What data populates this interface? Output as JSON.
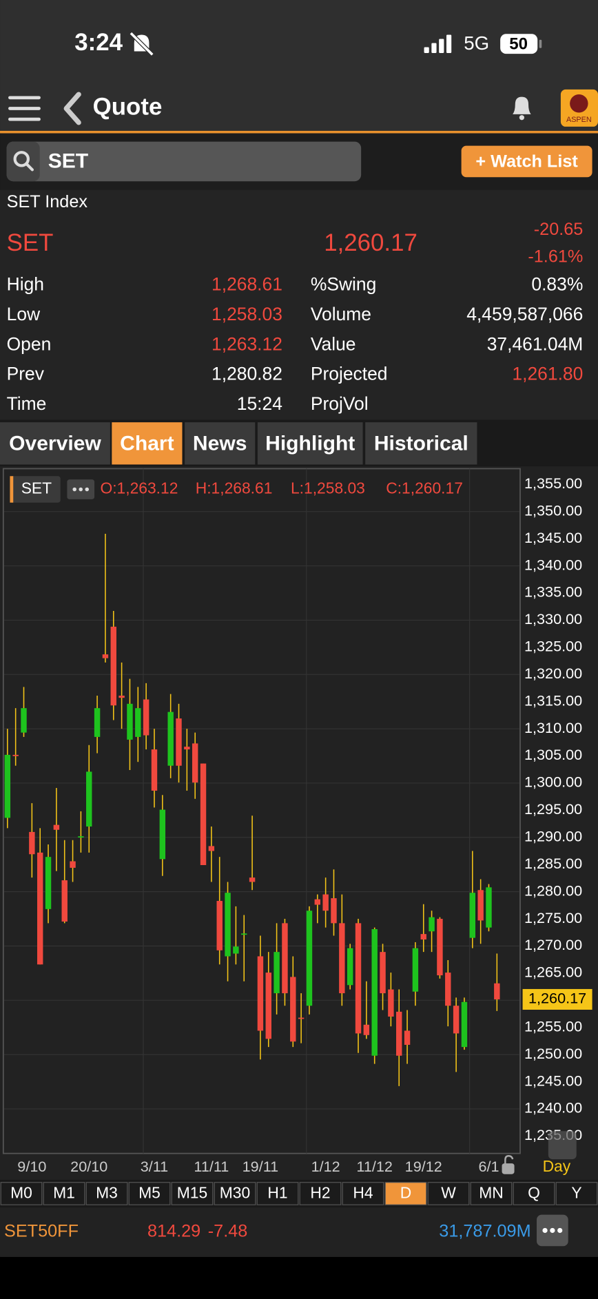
{
  "status_bar": {
    "time": "3:24",
    "network": "5G",
    "battery": "50"
  },
  "header": {
    "title": "Quote",
    "logo": "ASPEN"
  },
  "search": {
    "query": "SET",
    "button": "+ Watch List"
  },
  "quote": {
    "name": "SET Index",
    "symbol": "SET",
    "last": "1,260.17",
    "change": "-20.65",
    "change_pct": "-1.61%",
    "stats_left": [
      {
        "label": "High",
        "value": "1,268.61",
        "color": "#f0493e"
      },
      {
        "label": "Low",
        "value": "1,258.03",
        "color": "#f0493e"
      },
      {
        "label": "Open",
        "value": "1,263.12",
        "color": "#f0493e"
      },
      {
        "label": "Prev",
        "value": "1,280.82",
        "color": "#ffffff"
      },
      {
        "label": "Time",
        "value": "15:24",
        "color": "#ffffff"
      }
    ],
    "stats_right": [
      {
        "label": "%Swing",
        "value": "0.83%",
        "color": "#ffffff"
      },
      {
        "label": "Volume",
        "value": "4,459,587,066",
        "color": "#ffffff"
      },
      {
        "label": "Value",
        "value": "37,461.04M",
        "color": "#ffffff"
      },
      {
        "label": "Projected",
        "value": "1,261.80",
        "color": "#f0493e"
      },
      {
        "label": "ProjVol"
      }
    ]
  },
  "tabs": [
    {
      "label": "Overview",
      "active": false
    },
    {
      "label": "Chart",
      "active": true
    },
    {
      "label": "News",
      "active": false
    },
    {
      "label": "Highlight",
      "active": false
    },
    {
      "label": "Historical",
      "active": false
    }
  ],
  "chart_data": {
    "type": "candlestick",
    "symbol": "SET",
    "legend": [
      "O:1,263.12",
      "H:1,268.61",
      "L:1,258.03",
      "C:1,260.17"
    ],
    "up_color": "#1ec31e",
    "down_color": "#f0493e",
    "grid": true,
    "ylim": [
      1231.8,
      1357.9
    ],
    "yticks": [
      {
        "value": 1355,
        "label": "1,355.00"
      },
      {
        "value": 1350,
        "label": "1,350.00"
      },
      {
        "value": 1345,
        "label": "1,345.00"
      },
      {
        "value": 1340,
        "label": "1,340.00"
      },
      {
        "value": 1335,
        "label": "1,335.00"
      },
      {
        "value": 1330,
        "label": "1,330.00"
      },
      {
        "value": 1325,
        "label": "1,325.00"
      },
      {
        "value": 1320,
        "label": "1,320.00"
      },
      {
        "value": 1315,
        "label": "1,315.00"
      },
      {
        "value": 1310,
        "label": "1,310.00"
      },
      {
        "value": 1305,
        "label": "1,305.00"
      },
      {
        "value": 1300,
        "label": "1,300.00"
      },
      {
        "value": 1295,
        "label": "1,295.00"
      },
      {
        "value": 1290,
        "label": "1,290.00"
      },
      {
        "value": 1285,
        "label": "1,285.00"
      },
      {
        "value": 1280,
        "label": "1,280.00"
      },
      {
        "value": 1275,
        "label": "1,275.00"
      },
      {
        "value": 1270,
        "label": "1,270.00"
      },
      {
        "value": 1265,
        "label": "1,265.00"
      },
      {
        "value": 1260,
        "label": "1,260.00"
      },
      {
        "value": 1255,
        "label": "1,255.00"
      },
      {
        "value": 1250,
        "label": "1,250.00"
      },
      {
        "value": 1245,
        "label": "1,245.00"
      },
      {
        "value": 1240,
        "label": "1,240.00"
      },
      {
        "value": 1235,
        "label": "1,235.00"
      }
    ],
    "last_price": {
      "value": 1260.17,
      "label": "1,260.17"
    },
    "period": "Day",
    "categories": [
      null,
      null,
      null,
      "9/10",
      null,
      null,
      null,
      null,
      null,
      null,
      "20/10",
      null,
      null,
      null,
      null,
      null,
      null,
      null,
      "3/11",
      null,
      null,
      null,
      null,
      null,
      null,
      "11/11",
      null,
      null,
      null,
      null,
      null,
      "19/11",
      null,
      null,
      null,
      null,
      null,
      null,
      null,
      "1/12",
      null,
      null,
      null,
      null,
      null,
      "11/12",
      null,
      null,
      null,
      null,
      null,
      "19/12",
      null,
      null,
      null,
      null,
      null,
      null,
      null,
      "6/1",
      null
    ],
    "open": [
      1293.6,
      1305.2,
      1309.3,
      1291.0,
      1287.2,
      1276.8,
      1292.3,
      1282.1,
      1285.6,
      1290.0,
      1292.0,
      1308.5,
      1323.7,
      1328.8,
      1316.1,
      1308.0,
      1308.5,
      1315.4,
      1306.2,
      1286.0,
      1303.2,
      1311.9,
      1306.7,
      1307.3,
      1303.6,
      1288.4,
      1278.3,
      1268.1,
      1268.6,
      1272.2,
      1282.6,
      1268.1,
      1265.1,
      1261.3,
      1274.2,
      1264.3,
      1256.8,
      1259.0,
      1278.6,
      1279.5,
      1278.8,
      1274.2,
      1262.8,
      1274.2,
      1255.5,
      1249.8,
      1268.9,
      1262.0,
      1257.9,
      1254.4,
      1261.6,
      1272.2,
      1272.7,
      1275.0,
      1265.1,
      1259.0,
      1251.4,
      1271.5,
      1280.3,
      1273.4,
      1263.12
    ],
    "high": [
      1310.0,
      1313.8,
      1317.7,
      1296.3,
      1291.7,
      1288.7,
      1299.1,
      1289.5,
      1289.5,
      1294.8,
      1307.0,
      1316.1,
      1345.9,
      1331.7,
      1322.2,
      1319.2,
      1317.7,
      1318.4,
      1310.0,
      1297.8,
      1316.4,
      1314.6,
      1310.0,
      1309.3,
      1303.6,
      1292.0,
      1286.4,
      1281.8,
      1277.3,
      1275.7,
      1294.0,
      1271.9,
      1268.9,
      1274.2,
      1275.0,
      1268.1,
      1261.3,
      1277.3,
      1279.5,
      1282.6,
      1284.1,
      1279.5,
      1270.4,
      1275.0,
      1263.5,
      1273.4,
      1270.4,
      1265.1,
      1262.0,
      1258.2,
      1270.7,
      1277.7,
      1276.5,
      1275.3,
      1267.4,
      1260.5,
      1260.5,
      1287.5,
      1282.3,
      1281.4,
      1268.61
    ],
    "low": [
      1291.7,
      1303.2,
      1308.5,
      1282.6,
      1266.6,
      1274.2,
      1283.8,
      1274.2,
      1281.8,
      1287.2,
      1287.2,
      1305.5,
      1322.2,
      1311.6,
      1310.0,
      1302.4,
      1303.9,
      1306.2,
      1295.5,
      1282.9,
      1300.9,
      1300.1,
      1298.6,
      1297.1,
      1284.9,
      1281.8,
      1266.6,
      1263.5,
      1266.6,
      1263.5,
      1280.3,
      1249.1,
      1251.4,
      1257.4,
      1259.0,
      1251.4,
      1252.1,
      1257.4,
      1274.2,
      1273.4,
      1271.9,
      1259.0,
      1262.0,
      1250.3,
      1252.9,
      1248.3,
      1258.2,
      1255.2,
      1244.2,
      1248.3,
      1259.0,
      1268.9,
      1268.9,
      1264.0,
      1255.2,
      1246.8,
      1250.9,
      1269.6,
      1270.4,
      1272.7,
      1258.03
    ],
    "close": [
      1305.2,
      1305.0,
      1313.8,
      1286.9,
      1266.6,
      1286.4,
      1291.4,
      1274.5,
      1284.4,
      1290.2,
      1302.1,
      1313.8,
      1323.0,
      1314.3,
      1315.7,
      1314.6,
      1313.8,
      1308.8,
      1298.6,
      1295.1,
      1313.1,
      1303.2,
      1306.2,
      1300.1,
      1284.9,
      1287.5,
      1269.2,
      1279.8,
      1269.9,
      1272.3,
      1281.8,
      1254.4,
      1252.9,
      1268.9,
      1261.3,
      1252.4,
      1256.7,
      1276.5,
      1277.6,
      1276.5,
      1274.2,
      1261.3,
      1269.6,
      1253.9,
      1253.6,
      1273.1,
      1261.3,
      1257.0,
      1249.8,
      1251.8,
      1269.6,
      1271.2,
      1275.3,
      1264.6,
      1259.0,
      1253.9,
      1259.7,
      1279.8,
      1274.7,
      1280.8,
      1260.17
    ]
  },
  "timeframes": [
    {
      "label": "M0",
      "active": false
    },
    {
      "label": "M1",
      "active": false
    },
    {
      "label": "M3",
      "active": false
    },
    {
      "label": "M5",
      "active": false
    },
    {
      "label": "M15",
      "active": false
    },
    {
      "label": "M30",
      "active": false
    },
    {
      "label": "H1",
      "active": false
    },
    {
      "label": "H2",
      "active": false
    },
    {
      "label": "H4",
      "active": false
    },
    {
      "label": "D",
      "active": true
    },
    {
      "label": "W",
      "active": false
    },
    {
      "label": "MN",
      "active": false
    },
    {
      "label": "Q",
      "active": false
    },
    {
      "label": "Y",
      "active": false
    }
  ],
  "ticker": {
    "symbol": "SET50FF",
    "price": "814.29",
    "change": "-7.48",
    "value": "31,787.09M"
  }
}
